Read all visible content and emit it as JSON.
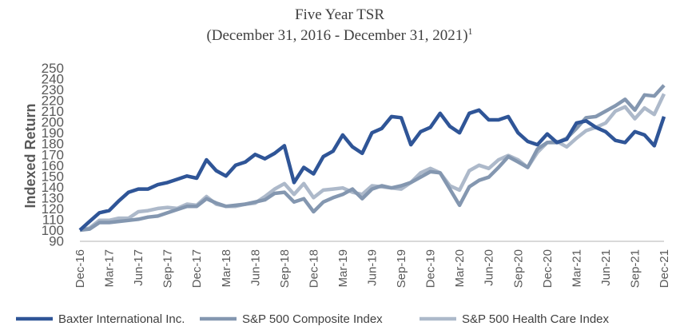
{
  "chart_data": {
    "type": "line",
    "title": "Five Year TSR",
    "subtitle": "(December 31, 2016 - December 31, 2021)",
    "subtitle_footnote": "1",
    "xlabel": "",
    "ylabel": "Indexed Return",
    "ylim": [
      90,
      250
    ],
    "yticks": [
      90,
      100,
      110,
      120,
      130,
      140,
      150,
      160,
      170,
      180,
      190,
      200,
      210,
      220,
      230,
      240,
      250
    ],
    "xtick_labels": [
      "Dec-16",
      "Mar-17",
      "Jun-17",
      "Sep-17",
      "Dec-17",
      "Mar-18",
      "Jun-18",
      "Sep-18",
      "Dec-18",
      "Mar-19",
      "Jun-19",
      "Sep-19",
      "Dec-19",
      "Mar-20",
      "Jun-20",
      "Sep-20",
      "Dec-20",
      "Mar-21",
      "Jun-21",
      "Sep-21",
      "Dec-21"
    ],
    "x_frequency": "monthly",
    "grid": false,
    "legend": "bottom",
    "series": [
      {
        "name": "Baxter International Inc.",
        "color": "#2F5597",
        "values": [
          100,
          108,
          116,
          118,
          127,
          135,
          138,
          138,
          142,
          144,
          147,
          150,
          148,
          165,
          155,
          150,
          160,
          163,
          170,
          166,
          171,
          178,
          144,
          158,
          152,
          168,
          173,
          188,
          177,
          171,
          190,
          194,
          205,
          204,
          179,
          191,
          195,
          208,
          196,
          190,
          208,
          211,
          202,
          202,
          205,
          190,
          182,
          179,
          189,
          181,
          184,
          199,
          201,
          195,
          191,
          183,
          181,
          191,
          188,
          178,
          205
        ]
      },
      {
        "name": "S&P 500 Composite Index",
        "color": "#8497B0",
        "values": [
          100,
          101,
          107,
          107,
          108,
          109,
          110,
          112,
          113,
          116,
          119,
          122,
          122,
          129,
          125,
          122,
          123,
          124,
          126,
          128,
          134,
          135,
          126,
          129,
          117,
          126,
          130,
          133,
          138,
          129,
          138,
          141,
          139,
          141,
          144,
          149,
          154,
          153,
          138,
          123,
          140,
          146,
          149,
          158,
          168,
          163,
          158,
          175,
          181,
          181,
          185,
          194,
          204,
          205,
          210,
          215,
          221,
          211,
          225,
          224,
          234
        ]
      },
      {
        "name": "S&P 500 Health Care Index",
        "color": "#ADB9CA",
        "values": [
          100,
          102,
          109,
          109,
          111,
          111,
          117,
          118,
          120,
          121,
          120,
          124,
          123,
          131,
          124,
          122,
          122,
          124,
          125,
          131,
          138,
          143,
          133,
          143,
          130,
          137,
          138,
          139,
          135,
          133,
          141,
          140,
          139,
          138,
          144,
          153,
          157,
          153,
          141,
          137,
          155,
          160,
          157,
          165,
          169,
          165,
          158,
          172,
          181,
          182,
          177,
          185,
          192,
          195,
          199,
          210,
          214,
          203,
          213,
          207,
          226
        ]
      }
    ]
  }
}
